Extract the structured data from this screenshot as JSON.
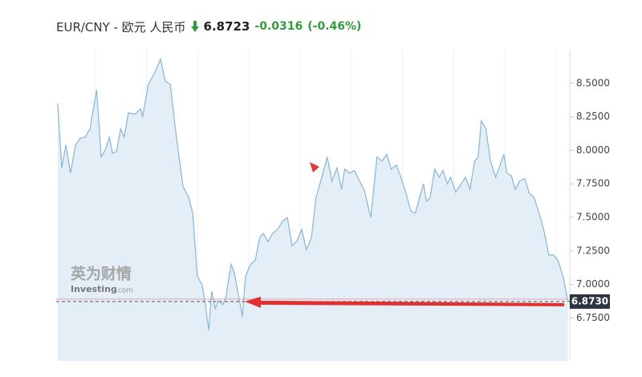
{
  "chart_data": {
    "type": "area",
    "title": "EUR/CNY - 欧元 人民币",
    "price": 6.8723,
    "change": -0.0316,
    "change_percent": "(-0.46%)",
    "watermark": [
      "英为财情",
      "Investing",
      ".com"
    ],
    "color": "#86b6d6",
    "fill": "#e4eef6",
    "grid": "x",
    "x": [
      2012.26,
      2012.34,
      2012.42,
      2012.51,
      2012.61,
      2012.7,
      2012.8,
      2012.89,
      2013.02,
      2013.11,
      2013.2,
      2013.27,
      2013.33,
      2013.41,
      2013.49,
      2013.56,
      2013.64,
      2013.77,
      2013.88,
      2013.92,
      2014.03,
      2014.16,
      2014.27,
      2014.36,
      2014.46,
      2014.58,
      2014.71,
      2014.82,
      2014.9,
      2014.99,
      2015.08,
      2015.15,
      2015.21,
      2015.27,
      2015.34,
      2015.4,
      2015.49,
      2015.55,
      2015.65,
      2015.71,
      2015.77,
      2015.87,
      2015.93,
      2016.03,
      2016.12,
      2016.21,
      2016.28,
      2016.37,
      2016.46,
      2016.56,
      2016.65,
      2016.75,
      2016.84,
      2016.93,
      2017.03,
      2017.12,
      2017.22,
      2017.31,
      2017.4,
      2017.53,
      2017.62,
      2017.72,
      2017.81,
      2017.87,
      2017.97,
      2018.06,
      2018.16,
      2018.25,
      2018.38,
      2018.5,
      2018.6,
      2018.69,
      2018.78,
      2018.88,
      2018.97,
      2019.07,
      2019.16,
      2019.25,
      2019.32,
      2019.41,
      2019.47,
      2019.54,
      2019.63,
      2019.72,
      2019.79,
      2019.88,
      2019.94,
      2020.04,
      2020.13,
      2020.23,
      2020.32,
      2020.41,
      2020.48,
      2020.54,
      2020.63,
      2020.72,
      2020.82,
      2020.88,
      2020.98,
      2021.04,
      2021.13,
      2021.2,
      2021.29,
      2021.39,
      2021.48,
      2021.57,
      2021.67,
      2021.76,
      2021.86,
      2021.95,
      2022.04,
      2022.14,
      2022.23
    ],
    "values": [
      8.35,
      7.87,
      8.04,
      7.83,
      8.04,
      8.09,
      8.1,
      8.16,
      8.45,
      7.95,
      8.01,
      8.1,
      7.98,
      7.99,
      8.16,
      8.1,
      8.28,
      8.27,
      8.31,
      8.25,
      8.49,
      8.58,
      8.68,
      8.52,
      8.49,
      8.1,
      7.73,
      7.65,
      7.53,
      7.06,
      7.0,
      6.85,
      6.66,
      6.95,
      6.82,
      6.88,
      6.85,
      6.91,
      7.15,
      7.09,
      6.97,
      6.76,
      7.06,
      7.15,
      7.18,
      7.35,
      7.38,
      7.32,
      7.38,
      7.41,
      7.47,
      7.5,
      7.29,
      7.32,
      7.41,
      7.26,
      7.35,
      7.65,
      7.77,
      7.95,
      7.77,
      7.87,
      7.71,
      7.86,
      7.83,
      7.85,
      7.77,
      7.71,
      7.5,
      7.95,
      7.92,
      7.97,
      7.86,
      7.89,
      7.8,
      7.68,
      7.55,
      7.53,
      7.63,
      7.75,
      7.62,
      7.65,
      7.86,
      7.8,
      7.85,
      7.75,
      7.8,
      7.69,
      7.74,
      7.8,
      7.71,
      7.92,
      7.95,
      8.22,
      8.16,
      7.92,
      7.8,
      7.86,
      7.97,
      7.83,
      7.81,
      7.71,
      7.77,
      7.79,
      7.68,
      7.65,
      7.53,
      7.41,
      7.22,
      7.22,
      7.18,
      7.06,
      6.88
    ],
    "xlim": [
      2012.23,
      2022.27
    ],
    "xticks": [
      2013,
      2014,
      2015,
      2016,
      2017,
      2018,
      2019,
      2020,
      2021,
      2022
    ],
    "ylim": [
      6.43,
      8.75
    ],
    "yticks": [
      {
        "value": 6.75,
        "label": "6.7500"
      },
      {
        "value": 7.0,
        "label": "7.0000"
      },
      {
        "value": 7.25,
        "label": "7.2500"
      },
      {
        "value": 7.5,
        "label": "7.5000"
      },
      {
        "value": 7.75,
        "label": "7.7500"
      },
      {
        "value": 8.0,
        "label": "8.0000"
      },
      {
        "value": 8.25,
        "label": "8.2500"
      },
      {
        "value": 8.5,
        "label": "8.5000"
      }
    ],
    "last_price": {
      "value": 6.873,
      "label": "6.8730"
    }
  }
}
